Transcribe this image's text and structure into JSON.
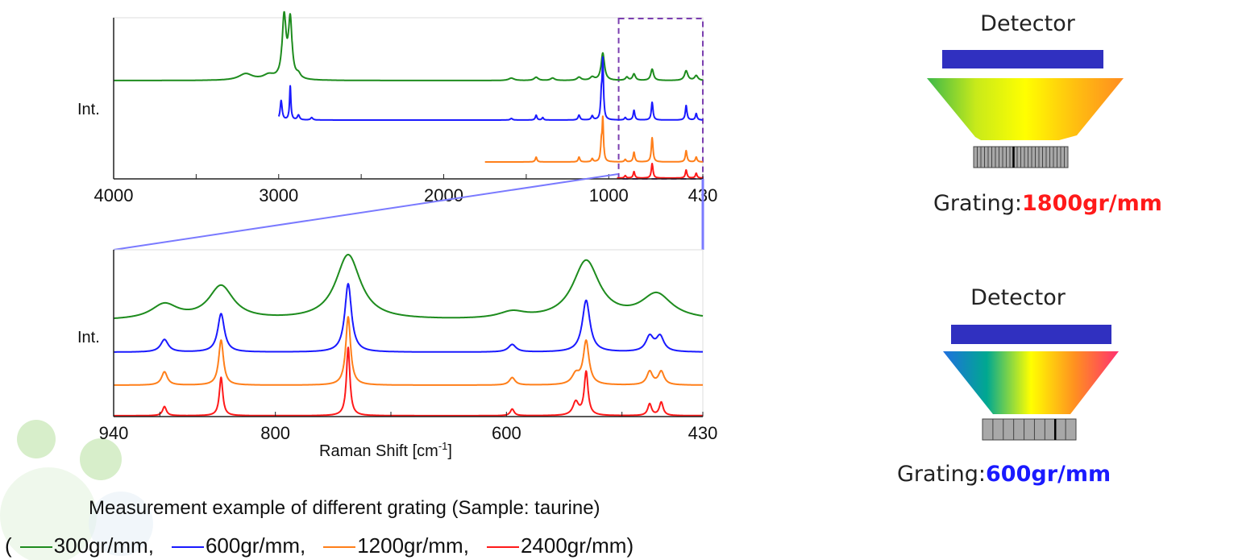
{
  "chart_data": [
    {
      "type": "line",
      "panel": "full-range",
      "ylabel": "Int.",
      "xlabel": "",
      "xlim": [
        4000,
        430
      ],
      "ylim": [
        0,
        100
      ],
      "x_ticks_labeled": [
        4000,
        3000,
        2000,
        1000,
        430
      ],
      "x_ticks_minor": [
        3500,
        2500,
        1500
      ],
      "highlight_box": {
        "x_range": [
          940,
          430
        ],
        "color": "#7b3fb0",
        "style": "dashed"
      },
      "series": [
        {
          "grating": "300gr/mm",
          "color": "#1e8c1e",
          "x_range": [
            4000,
            430
          ],
          "offset": 61,
          "peaks": [
            [
              3200,
              4,
              50
            ],
            [
              3060,
              3,
              40
            ],
            [
              2967,
              38,
              14
            ],
            [
              2930,
              36,
              13
            ],
            [
              2880,
              2.5,
              15
            ],
            [
              1590,
              1.5,
              20
            ],
            [
              1440,
              2,
              15
            ],
            [
              1340,
              1.5,
              15
            ],
            [
              1180,
              2,
              15
            ],
            [
              1100,
              2,
              15
            ],
            [
              1036,
              17,
              12
            ],
            [
              890,
              2,
              10
            ],
            [
              847,
              4,
              10
            ],
            [
              737,
              7,
              10
            ],
            [
              531,
              6,
              12
            ],
            [
              470,
              3,
              12
            ]
          ]
        },
        {
          "grating": "600gr/mm",
          "color": "#1a1aff",
          "x_range": [
            3000,
            430
          ],
          "offset": 36.5,
          "peaks": [
            [
              2985,
              12,
              7
            ],
            [
              2930,
              21,
              5
            ],
            [
              2880,
              3,
              8
            ],
            [
              2800,
              1.5,
              8
            ],
            [
              1590,
              1,
              8
            ],
            [
              1440,
              3,
              6
            ],
            [
              1400,
              1.5,
              6
            ],
            [
              1180,
              3,
              7
            ],
            [
              1100,
              2.5,
              7
            ],
            [
              1045,
              13,
              5
            ],
            [
              1036,
              36,
              5
            ],
            [
              900,
              1.5,
              6
            ],
            [
              847,
              6,
              6
            ],
            [
              737,
              11,
              6
            ],
            [
              531,
              9,
              6
            ],
            [
              470,
              4,
              6
            ]
          ]
        },
        {
          "grating": "1200gr/mm",
          "color": "#ff7f1a",
          "x_range": [
            1750,
            430
          ],
          "offset": 10.5,
          "peaks": [
            [
              1440,
              3,
              6
            ],
            [
              1180,
              3,
              6
            ],
            [
              1100,
              2,
              6
            ],
            [
              1045,
              10,
              5
            ],
            [
              1036,
              26,
              5
            ],
            [
              900,
              1.5,
              6
            ],
            [
              847,
              6,
              6
            ],
            [
              737,
              15,
              6
            ],
            [
              531,
              7,
              6
            ],
            [
              470,
              3,
              6
            ]
          ]
        },
        {
          "grating": "2400gr/mm",
          "color": "#ff1a1a",
          "x_range": [
            950,
            430
          ],
          "offset": 0.5,
          "peaks": [
            [
              900,
              1.5,
              6
            ],
            [
              847,
              4,
              6
            ],
            [
              737,
              9,
              6
            ],
            [
              531,
              5,
              6
            ],
            [
              470,
              3,
              6
            ]
          ]
        }
      ]
    },
    {
      "type": "line",
      "panel": "zoom",
      "ylabel": "Int.",
      "xlabel": "Raman Shift [cm-1]",
      "xlabel_main": "Raman Shift [cm",
      "xlabel_sup": "-1",
      "xlabel_end": "]",
      "xlim": [
        940,
        430
      ],
      "ylim": [
        0,
        100
      ],
      "x_ticks_labeled": [
        940,
        800,
        600,
        430
      ],
      "x_ticks_minor": [
        900,
        700,
        500
      ],
      "series": [
        {
          "grating": "300gr/mm",
          "color": "#1e8c1e",
          "offset": 57.5,
          "peaks": [
            [
              896,
              9,
              14
            ],
            [
              847,
              20,
              13
            ],
            [
              737,
              39,
              13
            ],
            [
              595,
              4,
              14
            ],
            [
              531,
              35,
              14
            ],
            [
              470,
              15,
              16
            ]
          ]
        },
        {
          "grating": "600gr/mm",
          "color": "#1a1aff",
          "offset": 38.6,
          "peaks": [
            [
              896,
              7.5,
              4
            ],
            [
              847,
              23,
              3.5
            ],
            [
              737,
              41,
              3.5
            ],
            [
              595,
              4.5,
              4
            ],
            [
              531,
              31,
              4
            ],
            [
              476,
              9,
              4
            ],
            [
              467,
              9,
              4
            ]
          ]
        },
        {
          "grating": "1200gr/mm",
          "color": "#ff7f1a",
          "offset": 18.8,
          "peaks": [
            [
              896,
              8,
              3
            ],
            [
              847,
              27,
              2.5
            ],
            [
              737,
              41,
              2.5
            ],
            [
              595,
              4.5,
              3
            ],
            [
              540,
              6,
              4
            ],
            [
              531,
              26,
              3
            ],
            [
              476,
              8,
              3
            ],
            [
              466,
              8,
              3
            ]
          ]
        },
        {
          "grating": "2400gr/mm",
          "color": "#ff1a1a",
          "offset": 0.5,
          "peaks": [
            [
              896,
              5.5,
              2
            ],
            [
              847,
              23,
              1.8
            ],
            [
              737,
              41,
              1.8
            ],
            [
              595,
              4,
              2
            ],
            [
              540,
              8,
              3
            ],
            [
              531,
              26,
              2
            ],
            [
              476,
              7,
              2
            ],
            [
              466,
              8,
              2
            ]
          ]
        }
      ]
    }
  ],
  "caption": "Measurement example of different grating (Sample: taurine)",
  "legend": {
    "open": "(",
    "close": ")",
    "items": [
      {
        "label": "300gr/mm,",
        "color": "#1e8c1e"
      },
      {
        "label": "600gr/mm,",
        "color": "#1a1aff"
      },
      {
        "label": "1200gr/mm,",
        "color": "#ff7f1a"
      },
      {
        "label": "2400gr/mm",
        "color": "#ff1a1a"
      }
    ]
  },
  "diagrams": [
    {
      "detector_label": "Detector",
      "grating_label": "Grating:",
      "grating_value": "1800gr/mm",
      "value_color": "#ff1a1a",
      "detector_color": "#3030c0",
      "spectrum_colors": [
        "#3cb84a",
        "#c8ea1a",
        "#ffff00",
        "#ffc010",
        "#ff8c20"
      ]
    },
    {
      "detector_label": "Detector",
      "grating_label": "Grating:",
      "grating_value": "600gr/mm",
      "value_color": "#1a1aff",
      "detector_color": "#3030c0",
      "spectrum_colors": [
        "#2070e0",
        "#00a890",
        "#ffff00",
        "#ff9020",
        "#ff3070"
      ]
    }
  ]
}
